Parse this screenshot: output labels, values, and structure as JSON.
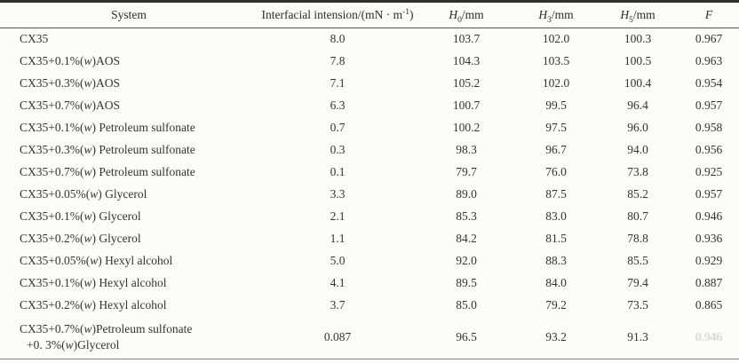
{
  "table": {
    "columns": [
      {
        "id": "system",
        "segments": [
          {
            "t": "System"
          }
        ]
      },
      {
        "id": "tension",
        "segments": [
          {
            "t": "Interfacial intension/(mN · m"
          },
          {
            "t": "-1",
            "style": "sup"
          },
          {
            "t": ")"
          }
        ]
      },
      {
        "id": "h0",
        "segments": [
          {
            "t": "H",
            "style": "italic"
          },
          {
            "t": "0",
            "style": "sub"
          },
          {
            "t": "/mm"
          }
        ]
      },
      {
        "id": "h3",
        "segments": [
          {
            "t": "H",
            "style": "italic"
          },
          {
            "t": "3",
            "style": "sub"
          },
          {
            "t": "/mm"
          }
        ]
      },
      {
        "id": "h5",
        "segments": [
          {
            "t": "H",
            "style": "italic"
          },
          {
            "t": "5",
            "style": "sub"
          },
          {
            "t": "/mm"
          }
        ]
      },
      {
        "id": "f",
        "segments": [
          {
            "t": "F",
            "style": "italic"
          }
        ]
      }
    ],
    "rows": [
      {
        "system": [
          "CX35"
        ],
        "tension": "8.0",
        "h0": "103.7",
        "h3": "102.0",
        "h5": "100.3",
        "f": "0.967"
      },
      {
        "system": [
          "CX35+0.1%(w)AOS"
        ],
        "tension": "7.8",
        "h0": "104.3",
        "h3": "103.5",
        "h5": "100.5",
        "f": "0.963"
      },
      {
        "system": [
          "CX35+0.3%(w)AOS"
        ],
        "tension": "7.1",
        "h0": "105.2",
        "h3": "102.0",
        "h5": "100.4",
        "f": "0.954"
      },
      {
        "system": [
          "CX35+0.7%(w)AOS"
        ],
        "tension": "6.3",
        "h0": "100.7",
        "h3": "99.5",
        "h5": "96.4",
        "f": "0.957"
      },
      {
        "system": [
          "CX35+0.1%(w) Petroleum sulfonate"
        ],
        "tension": "0.7",
        "h0": "100.2",
        "h3": "97.5",
        "h5": "96.0",
        "f": "0.958"
      },
      {
        "system": [
          "CX35+0.3%(w) Petroleum sulfonate"
        ],
        "tension": "0.3",
        "h0": "98.3",
        "h3": "96.7",
        "h5": "94.0",
        "f": "0.956"
      },
      {
        "system": [
          "CX35+0.7%(w) Petroleum sulfonate"
        ],
        "tension": "0.1",
        "h0": "79.7",
        "h3": "76.0",
        "h5": "73.8",
        "f": "0.925"
      },
      {
        "system": [
          "CX35+0.05%(w) Glycerol"
        ],
        "tension": "3.3",
        "h0": "89.0",
        "h3": "87.5",
        "h5": "85.2",
        "f": "0.957"
      },
      {
        "system": [
          "CX35+0.1%(w) Glycerol"
        ],
        "tension": "2.1",
        "h0": "85.3",
        "h3": "83.0",
        "h5": "80.7",
        "f": "0.946"
      },
      {
        "system": [
          "CX35+0.2%(w) Glycerol"
        ],
        "tension": "1.1",
        "h0": "84.2",
        "h3": "81.5",
        "h5": "78.8",
        "f": "0.936"
      },
      {
        "system": [
          "CX35+0.05%(w) Hexyl alcohol"
        ],
        "tension": "5.0",
        "h0": "92.0",
        "h3": "88.3",
        "h5": "85.5",
        "f": "0.929"
      },
      {
        "system": [
          "CX35+0.1%(w) Hexyl alcohol"
        ],
        "tension": "4.1",
        "h0": "89.5",
        "h3": "84.0",
        "h5": "79.4",
        "f": "0.887"
      },
      {
        "system": [
          "CX35+0.2%(w) Hexyl alcohol"
        ],
        "tension": "3.7",
        "h0": "85.0",
        "h3": "79.2",
        "h5": "73.5",
        "f": "0.865"
      },
      {
        "system": [
          "CX35+0.7%(w)Petroleum sulfonate",
          "+0. 3%(w)Glycerol"
        ],
        "tension": "0.087",
        "h0": "96.5",
        "h3": "93.2",
        "h5": "91.3",
        "f": "0.946",
        "f_faded": true
      }
    ]
  },
  "colors": {
    "paper": "#fcfcfb",
    "text": "#2e2e2e",
    "rule_top": "#2f2f2f",
    "rule_thin": "#555555",
    "faded_value": "#c5c5c5"
  }
}
